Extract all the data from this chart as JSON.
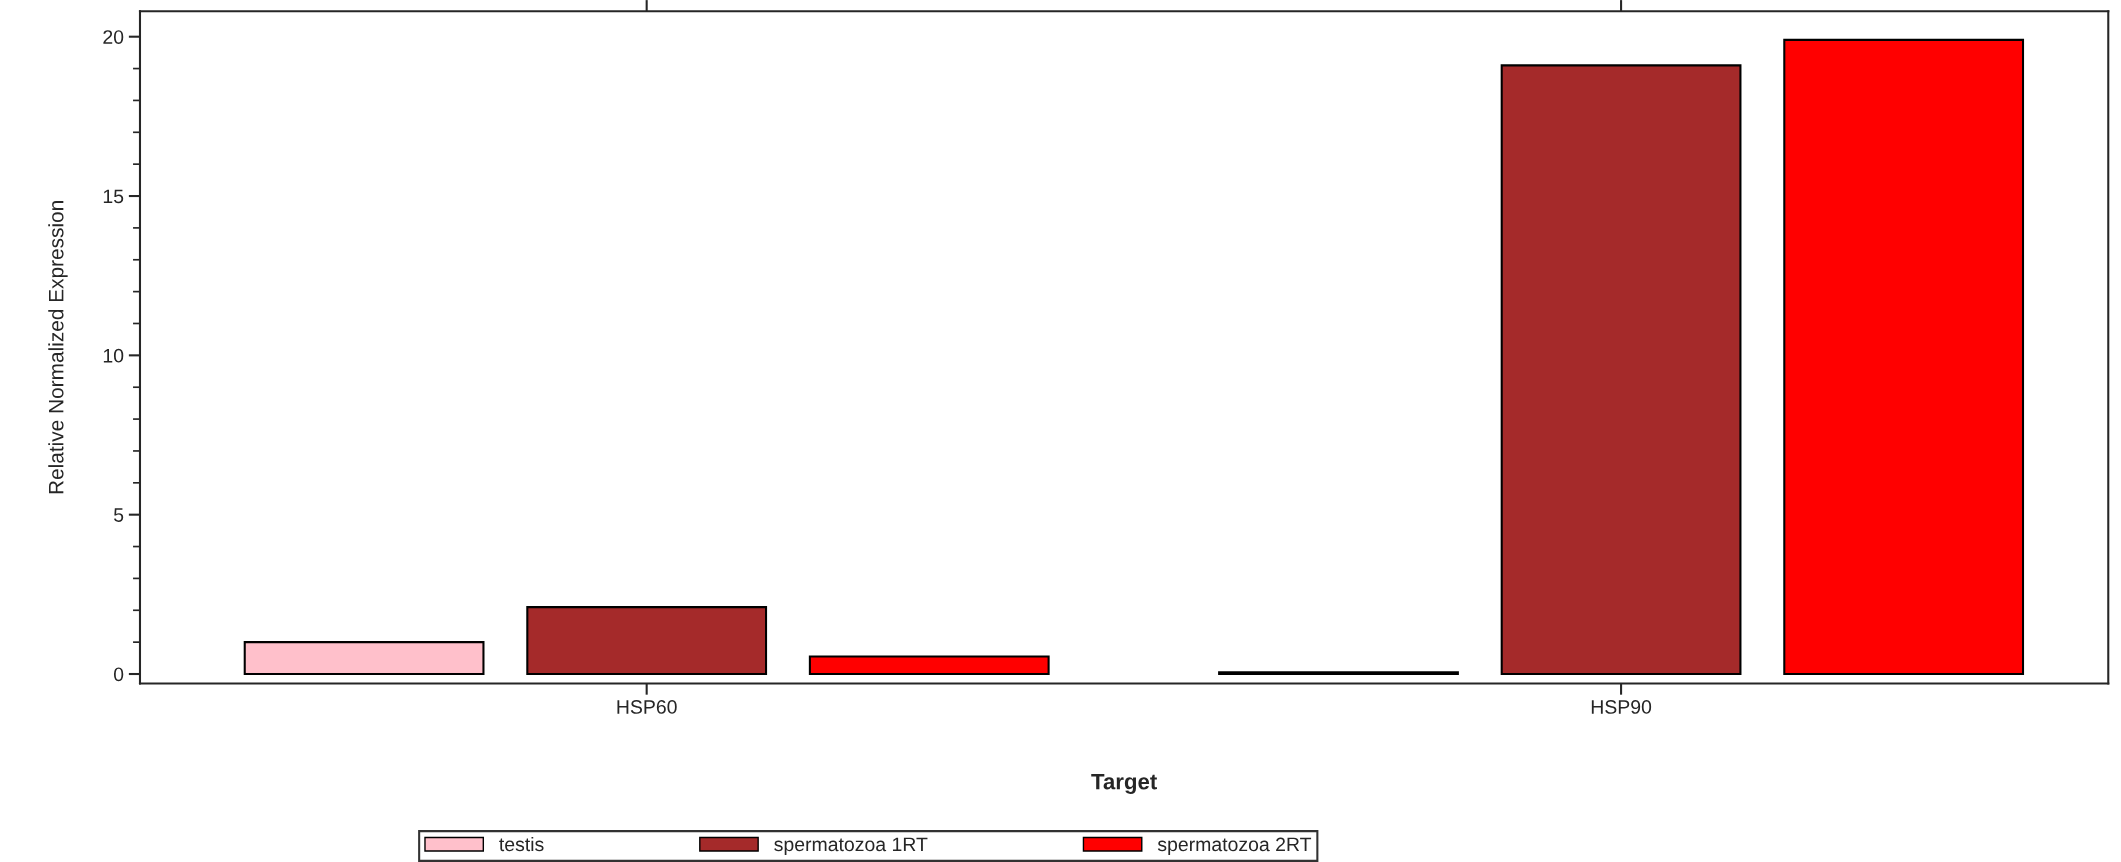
{
  "chart_data": {
    "type": "bar",
    "xlabel": "Target",
    "ylabel": "Relative Normalized Expression",
    "categories": [
      "HSP60",
      "HSP90"
    ],
    "series": [
      {
        "name": "testis",
        "color": "#ffc0cb",
        "values": [
          1.0,
          0.05
        ]
      },
      {
        "name": "spermatozoa 1RT",
        "color": "#a52a2a",
        "values": [
          2.1,
          19.1
        ]
      },
      {
        "name": "spermatozoa 2RT",
        "color": "#ff0000",
        "values": [
          0.55,
          19.9
        ]
      }
    ],
    "ylim": [
      -0.3,
      20.8
    ],
    "yticks": [
      0,
      5,
      10,
      15,
      20
    ],
    "grid": false,
    "legend": "bottom"
  }
}
